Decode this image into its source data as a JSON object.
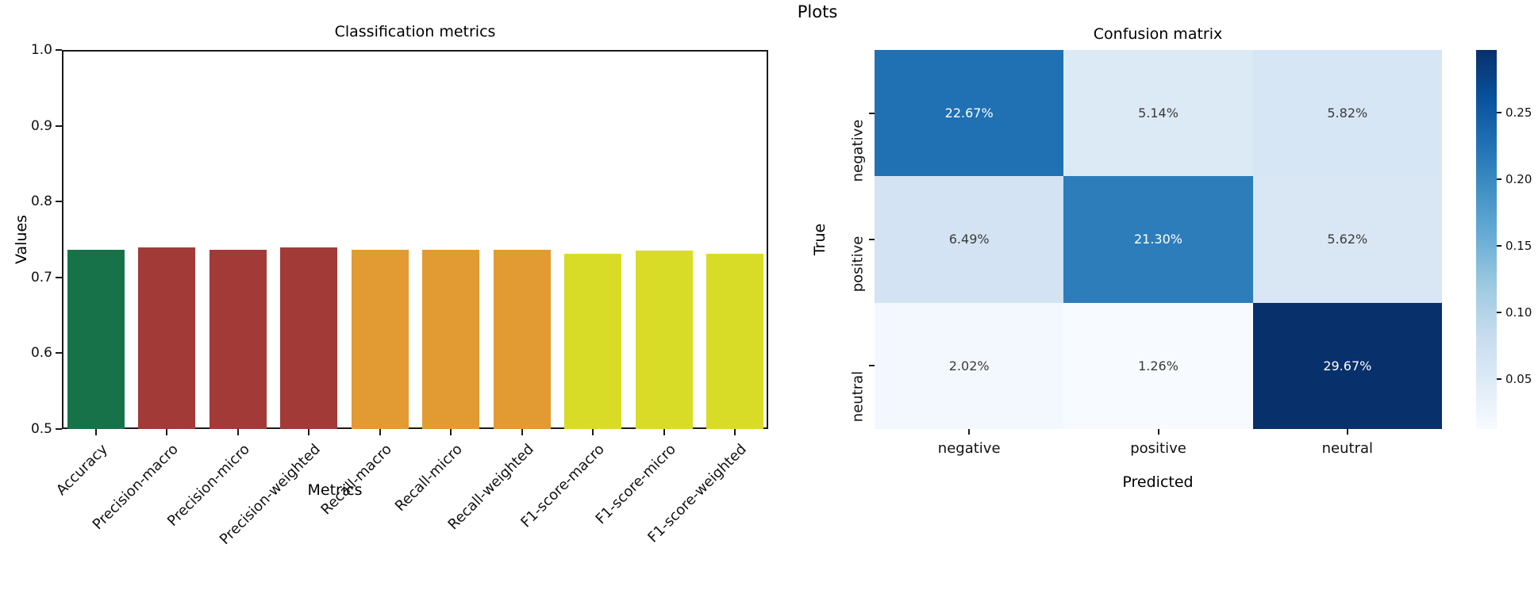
{
  "page_title": "Plots",
  "chart_data": [
    {
      "type": "bar",
      "title": "Classification metrics",
      "xlabel": "Metrics",
      "ylabel": "Values",
      "ylim": [
        0.5,
        1.0
      ],
      "yticks": [
        "1.0",
        "0.9",
        "0.8",
        "0.7",
        "0.6",
        "0.5"
      ],
      "grid": false,
      "categories": [
        "Accuracy",
        "Precision-macro",
        "Precision-micro",
        "Precision-weighted",
        "Recall-macro",
        "Recall-micro",
        "Recall-weighted",
        "F1-score-macro",
        "F1-score-micro",
        "F1-score-weighted"
      ],
      "values": [
        0.736,
        0.74,
        0.736,
        0.74,
        0.736,
        0.736,
        0.736,
        0.731,
        0.735,
        0.731
      ],
      "bar_colors": [
        "#17724a",
        "#a23a37",
        "#a23a37",
        "#a23a37",
        "#e29a33",
        "#e29a33",
        "#e29a33",
        "#d8dc26",
        "#d8dc26",
        "#d8dc26"
      ]
    },
    {
      "type": "heatmap",
      "title": "Confusion matrix",
      "xlabel": "Predicted",
      "ylabel": "True",
      "x_categories": [
        "negative",
        "positive",
        "neutral"
      ],
      "y_categories": [
        "negative",
        "positive",
        "neutral"
      ],
      "values_percent": [
        [
          22.67,
          5.14,
          5.82
        ],
        [
          6.49,
          21.3,
          5.62
        ],
        [
          2.02,
          1.26,
          29.67
        ]
      ],
      "cell_labels": [
        [
          "22.67%",
          "5.14%",
          "5.82%"
        ],
        [
          "6.49%",
          "21.30%",
          "5.62%"
        ],
        [
          "2.02%",
          "1.26%",
          "29.67%"
        ]
      ],
      "colormap": "Blues",
      "legend_position": "right-colorbar",
      "colorbar": {
        "vmin": 0.0126,
        "vmax": 0.2967,
        "ticks": [
          "0.25",
          "0.20",
          "0.15",
          "0.10",
          "0.05"
        ]
      }
    }
  ]
}
